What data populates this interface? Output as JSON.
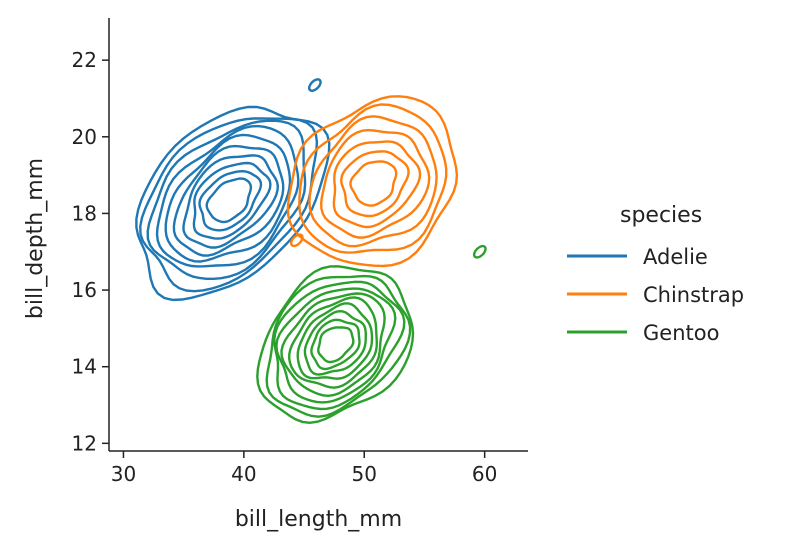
{
  "chart_data": {
    "type": "kde-contour",
    "title": "",
    "xlabel": "bill_length_mm",
    "ylabel": "bill_depth_mm",
    "xlim": [
      28.8,
      63.6
    ],
    "ylim": [
      11.8,
      23.1
    ],
    "xticks": [
      30,
      40,
      50,
      60
    ],
    "yticks": [
      12,
      14,
      16,
      18,
      20,
      22
    ],
    "grid": false,
    "legend": {
      "title": "species",
      "placement": "right outside"
    },
    "series": [
      {
        "name": "Adelie",
        "color": "#1f77b4",
        "center": [
          38.8,
          18.35
        ],
        "outer_range": {
          "x": [
            31.5,
            46.5
          ],
          "y": [
            15.2,
            21.8
          ]
        },
        "levels": 10,
        "islands": [
          [
            45.9,
            21.35
          ]
        ]
      },
      {
        "name": "Chinstrap",
        "color": "#ff7f0e",
        "center": [
          50.8,
          18.8
        ],
        "outer_range": {
          "x": [
            40.5,
            55.8
          ],
          "y": [
            15.9,
            21.3
          ]
        },
        "levels": 7,
        "islands": [
          [
            44.4,
            17.3
          ]
        ]
      },
      {
        "name": "Gentoo",
        "color": "#2ca02c",
        "center": [
          47.6,
          14.6
        ],
        "outer_range": {
          "x": [
            41.0,
            54.3
          ],
          "y": [
            12.6,
            17.7
          ]
        },
        "levels": 10,
        "islands": [
          [
            59.6,
            17.0
          ]
        ]
      }
    ]
  }
}
